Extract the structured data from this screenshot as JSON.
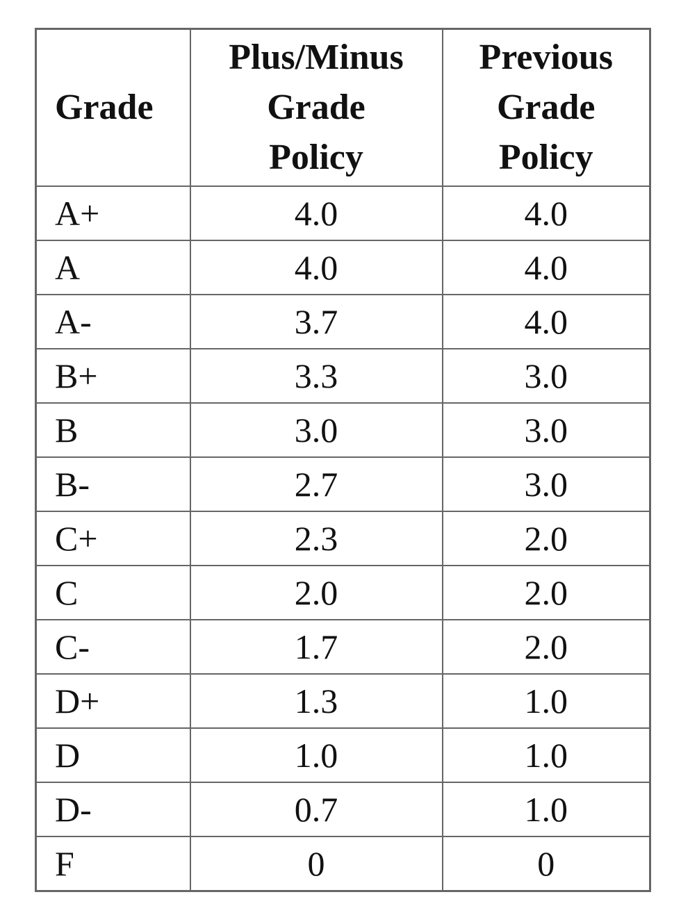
{
  "table": {
    "header": [
      "Grade",
      "Plus/Minus\nGrade\nPolicy",
      "Previous\nGrade\nPolicy"
    ],
    "rows": [
      [
        "A+",
        "4.0",
        "4.0"
      ],
      [
        "A",
        "4.0",
        "4.0"
      ],
      [
        "A-",
        "3.7",
        "4.0"
      ],
      [
        "B+",
        "3.3",
        "3.0"
      ],
      [
        "B",
        "3.0",
        "3.0"
      ],
      [
        "B-",
        "2.7",
        "3.0"
      ],
      [
        "C+",
        "2.3",
        "2.0"
      ],
      [
        "C",
        "2.0",
        "2.0"
      ],
      [
        "C-",
        "1.7",
        "2.0"
      ],
      [
        "D+",
        "1.3",
        "1.0"
      ],
      [
        "D",
        "1.0",
        "1.0"
      ],
      [
        "D-",
        "0.7",
        "1.0"
      ],
      [
        "F",
        "0",
        "0"
      ]
    ]
  }
}
